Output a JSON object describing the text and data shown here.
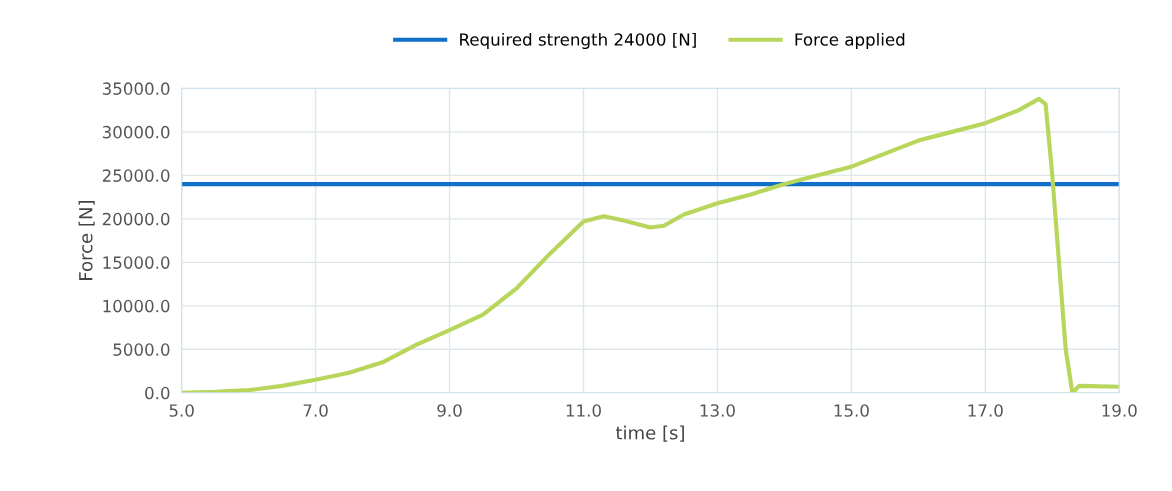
{
  "chart_data": {
    "type": "line",
    "xlabel": "time [s]",
    "ylabel": "Force [N]",
    "series": [
      {
        "name": "Required strength 24000 [N]",
        "color": "#1070c8",
        "x": [
          5.0,
          19.0
        ],
        "values": [
          24000,
          24000
        ]
      },
      {
        "name": "Force applied",
        "color": "#b8d65c",
        "x": [
          5.0,
          5.5,
          6.0,
          6.5,
          7.0,
          7.5,
          8.0,
          8.5,
          9.0,
          9.5,
          10.0,
          10.5,
          11.0,
          11.3,
          11.6,
          12.0,
          12.2,
          12.5,
          13.0,
          13.5,
          14.0,
          14.5,
          15.0,
          15.5,
          16.0,
          16.5,
          17.0,
          17.5,
          17.8,
          17.9,
          18.0,
          18.1,
          18.2,
          18.3,
          18.4,
          19.0
        ],
        "values": [
          0,
          100,
          300,
          800,
          1500,
          2300,
          3500,
          5500,
          7200,
          9000,
          12000,
          16000,
          19700,
          20300,
          19800,
          19000,
          19200,
          20500,
          21800,
          22800,
          24000,
          25000,
          26000,
          27500,
          29000,
          30000,
          31000,
          32500,
          33800,
          33200,
          25000,
          15000,
          5000,
          0,
          800,
          700
        ]
      }
    ],
    "xlim": [
      5.0,
      19.0
    ],
    "xticks": [
      {
        "value": 5,
        "label": "5.0"
      },
      {
        "value": 7,
        "label": "7.0"
      },
      {
        "value": 9,
        "label": "9.0"
      },
      {
        "value": 11,
        "label": "11.0"
      },
      {
        "value": 13,
        "label": "13.0"
      },
      {
        "value": 15,
        "label": "15.0"
      },
      {
        "value": 17,
        "label": "17.0"
      },
      {
        "value": 19,
        "label": "19.0"
      }
    ],
    "ylim": [
      0,
      35000
    ],
    "yticks": [
      {
        "value": 0,
        "label": "0.0"
      },
      {
        "value": 5000,
        "label": "5000.0"
      },
      {
        "value": 10000,
        "label": "10000.0"
      },
      {
        "value": 15000,
        "label": "15000.0"
      },
      {
        "value": 20000,
        "label": "20000.0"
      },
      {
        "value": 25000,
        "label": "25000.0"
      },
      {
        "value": 30000,
        "label": "30000.0"
      },
      {
        "value": 35000,
        "label": "35000.0"
      }
    ],
    "grid": true,
    "legend": "top",
    "marker": "none",
    "line_style": "solid"
  }
}
